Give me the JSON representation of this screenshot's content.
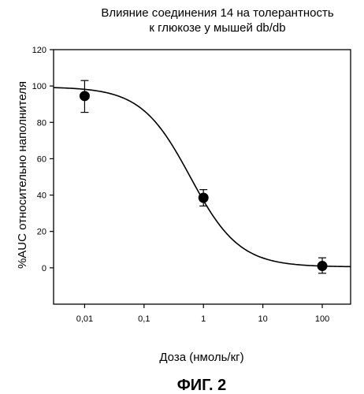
{
  "chart_data": {
    "type": "scatter",
    "title_lines": [
      "Влияние соединения 14 на толерантность",
      "к глюкозе у мышей db/db"
    ],
    "xlabel": "Доза  (нмоль/кг)",
    "ylabel": "%AUC относительно наполнителя",
    "x_scale": "log",
    "xlim": [
      0.003,
      300
    ],
    "ylim": [
      -20,
      120
    ],
    "x_ticks": [
      0.01,
      0.1,
      1,
      10,
      100
    ],
    "x_tick_labels": [
      "0,01",
      "0,1",
      "1",
      "10",
      "100"
    ],
    "y_ticks": [
      0,
      20,
      40,
      60,
      80,
      100,
      120
    ],
    "y_tick_labels": [
      "0",
      "20",
      "40",
      "60",
      "80",
      "100",
      "120"
    ],
    "grid": false,
    "points": [
      {
        "x": 0.01,
        "y": 94.5,
        "err_low": 85.5,
        "err_high": 103
      },
      {
        "x": 1,
        "y": 38.5,
        "err_low": 34,
        "err_high": 43
      },
      {
        "x": 100,
        "y": 1,
        "err_low": -3,
        "err_high": 5.5
      }
    ],
    "fit_curve": {
      "model": "sigmoid",
      "top": 99.5,
      "bottom": 0.5,
      "ec50": 0.6,
      "hill": 1.05,
      "x_range": [
        0.003,
        300
      ]
    },
    "caption": "ФИГ. 2"
  }
}
